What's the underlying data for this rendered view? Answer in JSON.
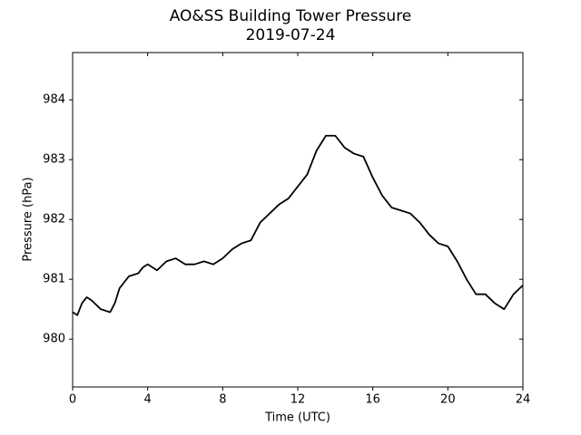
{
  "chart_data": {
    "type": "line",
    "title": "AO&SS Building Tower Pressure",
    "subtitle": "2019-07-24",
    "x_label": "Time (UTC)",
    "y_label": "Pressure (hPa)",
    "x": [
      0,
      0.25,
      0.5,
      0.75,
      1,
      1.5,
      2,
      2.25,
      2.5,
      3,
      3.5,
      3.75,
      4,
      4.5,
      5,
      5.5,
      6,
      6.5,
      7,
      7.5,
      8,
      8.5,
      9,
      9.5,
      10,
      10.5,
      11,
      11.5,
      12,
      12.5,
      13,
      13.5,
      14,
      14.5,
      15,
      15.5,
      16,
      16.5,
      17,
      17.5,
      18,
      18.5,
      19,
      19.5,
      20,
      20.5,
      21,
      21.5,
      22,
      22.5,
      23,
      23.5,
      24
    ],
    "series": [
      {
        "name": "Pressure",
        "color": "#000000",
        "values": [
          980.45,
          980.4,
          980.6,
          980.7,
          980.65,
          980.5,
          980.45,
          980.6,
          980.85,
          981.05,
          981.1,
          981.2,
          981.25,
          981.15,
          981.3,
          981.35,
          981.25,
          981.25,
          981.3,
          981.25,
          981.35,
          981.5,
          981.6,
          981.65,
          981.95,
          982.1,
          982.25,
          982.35,
          982.55,
          982.75,
          983.15,
          983.4,
          983.4,
          983.2,
          983.1,
          983.05,
          982.7,
          982.4,
          982.2,
          982.15,
          982.1,
          981.95,
          981.75,
          981.6,
          981.55,
          981.3,
          981.0,
          980.75,
          980.75,
          980.6,
          980.5,
          980.75,
          980.9
        ]
      }
    ],
    "xlim": [
      0,
      24
    ],
    "xticks": [
      0,
      4,
      8,
      12,
      16,
      20,
      24
    ],
    "ylim": [
      979.2,
      984.79
    ],
    "yticks": [
      980,
      981,
      982,
      983,
      984
    ],
    "grid": false
  }
}
